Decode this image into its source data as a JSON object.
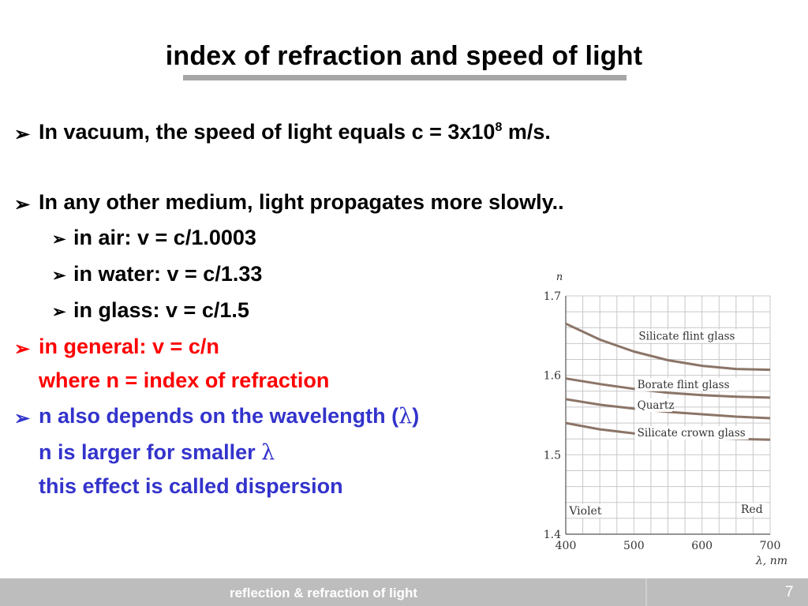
{
  "title": "index of refraction and speed of light",
  "bullets": {
    "b1_text": "In vacuum, the speed of light equals c = 3x10",
    "b1_sup": "8",
    "b1_after": " m/s.",
    "b2_text": "In any other medium, light propagates more slowly..",
    "sub1": "in air:  v = c/1.0003",
    "sub2": "in water: v = c/1.33",
    "sub3": "in glass: v = c/1.5",
    "b3_line1": "in general:  v = c/n",
    "b3_line2": "where n =  index of refraction",
    "b4_line1_pre": "n also depends on the wavelength (",
    "b4_lambda": "λ",
    "b4_line1_post": ")",
    "b4_line2_pre": "n is larger for smaller ",
    "b4_line2_lambda": "λ",
    "b4_line3": "this effect is called dispersion"
  },
  "arrow_glyph": "➢",
  "footer": {
    "text": "reflection & refraction of light",
    "page": "7"
  },
  "colors": {
    "black_text": "#000000",
    "red_text": "#ff0000",
    "blue_text": "#3333cc",
    "footer_bg": "#bdbdbd",
    "curve": "#8b7567"
  },
  "chart_data": {
    "type": "line",
    "ylabel": "n",
    "xlabel": "λ, nm",
    "xlim": [
      400,
      700
    ],
    "ylim": [
      1.4,
      1.7
    ],
    "xticks": [
      "400",
      "500",
      "600",
      "700"
    ],
    "yticks": [
      "1.4",
      "1.5",
      "1.6",
      "1.7"
    ],
    "grid": true,
    "annotations": [
      "Violet",
      "Red"
    ],
    "series": [
      {
        "name": "Silicate flint glass",
        "x": [
          400,
          450,
          500,
          550,
          600,
          650,
          700
        ],
        "y": [
          1.665,
          1.645,
          1.63,
          1.619,
          1.612,
          1.608,
          1.607
        ]
      },
      {
        "name": "Borate flint glass",
        "x": [
          400,
          450,
          500,
          550,
          600,
          650,
          700
        ],
        "y": [
          1.596,
          1.589,
          1.583,
          1.578,
          1.575,
          1.573,
          1.572
        ]
      },
      {
        "name": "Quartz",
        "x": [
          400,
          450,
          500,
          550,
          600,
          650,
          700
        ],
        "y": [
          1.57,
          1.563,
          1.558,
          1.554,
          1.551,
          1.548,
          1.546
        ]
      },
      {
        "name": "Silicate crown glass",
        "x": [
          400,
          450,
          500,
          550,
          600,
          650,
          700
        ],
        "y": [
          1.54,
          1.532,
          1.527,
          1.524,
          1.522,
          1.52,
          1.519
        ]
      }
    ]
  }
}
